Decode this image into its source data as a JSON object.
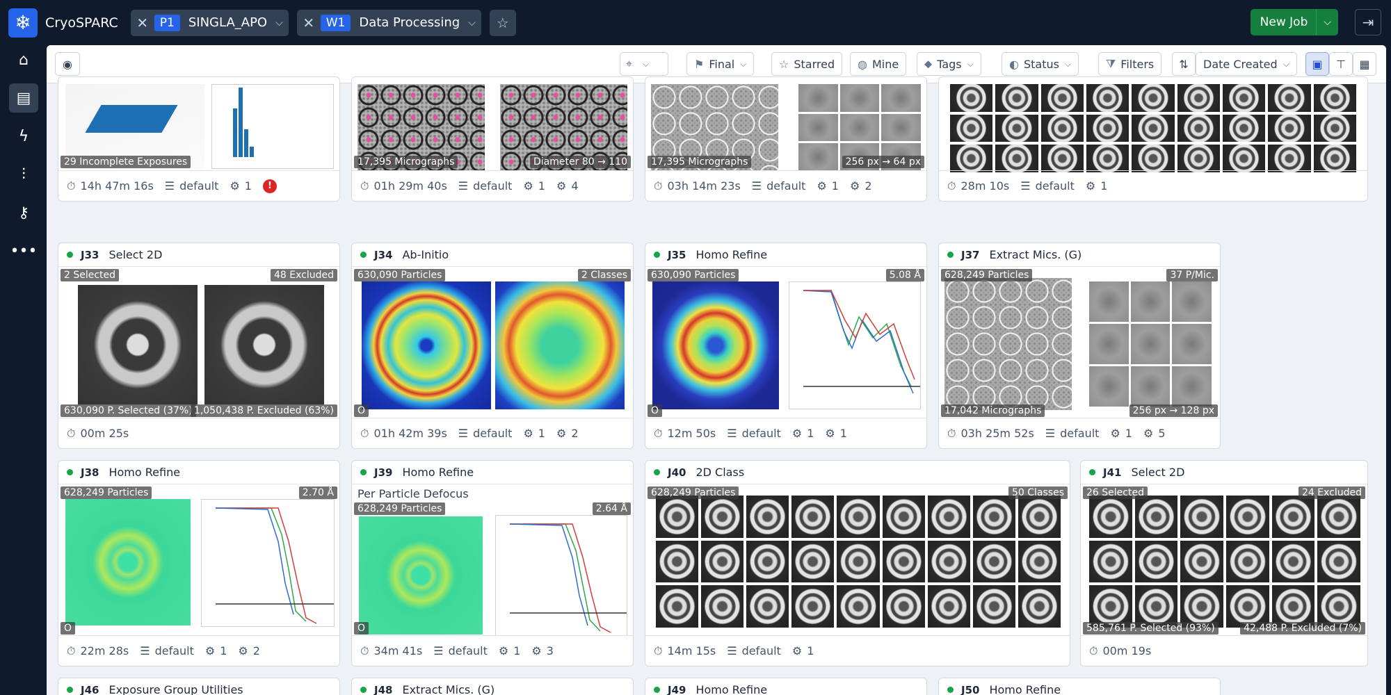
{
  "app": {
    "brand": "CryoSPARC"
  },
  "tabs": [
    {
      "code": "P1",
      "name": "SINGLA_APO"
    },
    {
      "code": "W1",
      "name": "Data Processing"
    }
  ],
  "top": {
    "new_job": "New Job"
  },
  "toolbar": {
    "final": "Final",
    "starred": "Starred",
    "mine": "Mine",
    "tags": "Tags",
    "status": "Status",
    "filters": "Filters",
    "sort": "Date Created"
  },
  "cards": {
    "r1a": {
      "badges": [
        "29 Incomplete Exposures"
      ],
      "time": "14h 47m 16s",
      "lane": "default",
      "gpu": "1",
      "err": "!"
    },
    "r1b": {
      "badges": [
        "17,395 Micrographs",
        "Diameter 80 → 110"
      ],
      "time": "01h 29m 40s",
      "lane": "default",
      "gpu": "1",
      "proc": "4"
    },
    "r1c": {
      "badges": [
        "17,395 Micrographs",
        "256 px → 64 px"
      ],
      "time": "03h 14m 23s",
      "lane": "default",
      "gpu": "1",
      "proc": "2"
    },
    "r1d": {
      "time": "28m 10s",
      "lane": "default",
      "gpu": "1"
    },
    "j33": {
      "id": "J33",
      "type": "Select 2D",
      "badges": [
        "2 Selected",
        "48 Excluded",
        "630,090 P. Selected (37%)",
        "1,050,438 P. Excluded (63%)"
      ],
      "time": "00m 25s"
    },
    "j34": {
      "id": "J34",
      "type": "Ab-Initio",
      "badges": [
        "630,090 Particles",
        "2 Classes",
        "O"
      ],
      "time": "01h 42m 39s",
      "lane": "default",
      "gpu": "1",
      "proc": "2"
    },
    "j35": {
      "id": "J35",
      "type": "Homo Refine",
      "badges": [
        "630,090 Particles",
        "5.08 Å",
        "O"
      ],
      "time": "12m 50s",
      "lane": "default",
      "gpu": "1",
      "proc": "1"
    },
    "j37": {
      "id": "J37",
      "type": "Extract Mics. (G)",
      "badges": [
        "628,249 Particles",
        "37 P/Mic.",
        "17,042 Micrographs",
        "256 px → 128 px"
      ],
      "time": "03h 25m 52s",
      "lane": "default",
      "gpu": "1",
      "proc": "5"
    },
    "j38": {
      "id": "J38",
      "type": "Homo Refine",
      "badges": [
        "628,249 Particles",
        "2.70 Å",
        "O"
      ],
      "time": "22m 28s",
      "lane": "default",
      "gpu": "1",
      "proc": "2"
    },
    "j39": {
      "id": "J39",
      "type": "Homo Refine",
      "subtitle": "Per Particle Defocus",
      "badges": [
        "628,249 Particles",
        "2.64 Å",
        "O"
      ],
      "time": "34m 41s",
      "lane": "default",
      "gpu": "1",
      "proc": "3"
    },
    "j40": {
      "id": "J40",
      "type": "2D Class",
      "badges": [
        "628,249 Particles",
        "50 Classes"
      ],
      "time": "14m 15s",
      "lane": "default",
      "gpu": "1"
    },
    "j41": {
      "id": "J41",
      "type": "Select 2D",
      "badges": [
        "26 Selected",
        "24 Excluded",
        "585,761 P. Selected (93%)",
        "42,488 P. Excluded (7%)"
      ],
      "time": "00m 19s"
    },
    "j46": {
      "id": "J46",
      "type": "Exposure Group Utilities"
    },
    "j48": {
      "id": "J48",
      "type": "Extract Mics. (G)"
    },
    "j49": {
      "id": "J49",
      "type": "Homo Refine"
    },
    "j50": {
      "id": "J50",
      "type": "Homo Refine"
    }
  }
}
